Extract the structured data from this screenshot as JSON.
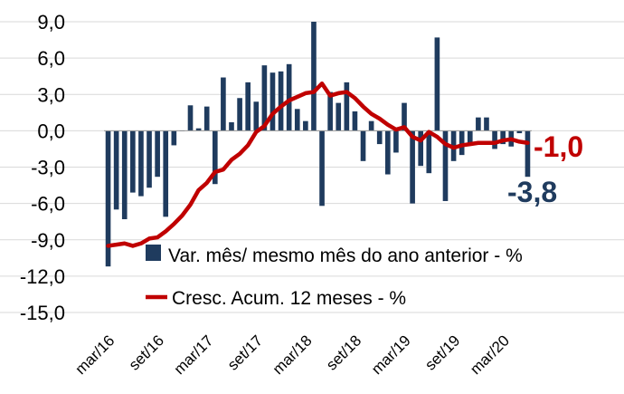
{
  "chart_data": {
    "type": "bar+line",
    "ylim": [
      -15,
      9
    ],
    "yticks": [
      "9,0",
      "6,0",
      "3,0",
      "0,0",
      "-3,0",
      "-6,0",
      "-9,0",
      "-12,0",
      "-15,0"
    ],
    "x_tick_labels": [
      "mar/16",
      "set/16",
      "mar/17",
      "set/17",
      "mar/18",
      "set/18",
      "mar/19",
      "set/19",
      "mar/20"
    ],
    "grid": true,
    "legend_position": "middle-right",
    "series": [
      {
        "name": "Var. mês/ mesmo mês do ano anterior - %",
        "type": "bar",
        "color": "#1f3b5e",
        "values": [
          -11.2,
          -6.5,
          -7.3,
          -5.1,
          -5.4,
          -4.7,
          -3.8,
          -7.1,
          -1.2,
          0.0,
          2.1,
          0.2,
          2.0,
          -4.4,
          4.4,
          0.7,
          2.7,
          4.0,
          2.4,
          5.4,
          4.8,
          4.9,
          5.5,
          1.8,
          0.8,
          9.0,
          -6.2,
          3.2,
          2.3,
          4.0,
          1.6,
          -2.5,
          0.8,
          -1.1,
          -3.6,
          -1.8,
          2.3,
          -6.0,
          -2.9,
          -3.5,
          7.7,
          -5.8,
          -2.5,
          -2.0,
          -1.0,
          1.1,
          1.1,
          -1.5,
          -1.1,
          -1.3,
          -0.2,
          -3.8
        ]
      },
      {
        "name": "Cresc. Acum. 12 meses - %",
        "type": "line",
        "color": "#c00000",
        "values": [
          -9.5,
          -9.4,
          -9.3,
          -9.5,
          -9.3,
          -8.9,
          -8.8,
          -8.3,
          -7.7,
          -7.0,
          -6.1,
          -4.9,
          -4.3,
          -3.4,
          -3.2,
          -2.4,
          -1.9,
          -1.2,
          -0.1,
          0.4,
          1.4,
          2.0,
          2.5,
          2.8,
          3.1,
          3.2,
          3.9,
          2.9,
          3.1,
          3.2,
          2.7,
          2.0,
          1.4,
          1.0,
          0.5,
          0.1,
          0.3,
          -0.5,
          -0.8,
          -0.1,
          -0.5,
          -1.1,
          -1.4,
          -1.2,
          -1.1,
          -1.0,
          -1.0,
          -1.0,
          -0.8,
          -0.7,
          -0.9,
          -1.0
        ]
      }
    ],
    "end_labels": {
      "line": "-1,0",
      "bar": "-3,8"
    }
  }
}
